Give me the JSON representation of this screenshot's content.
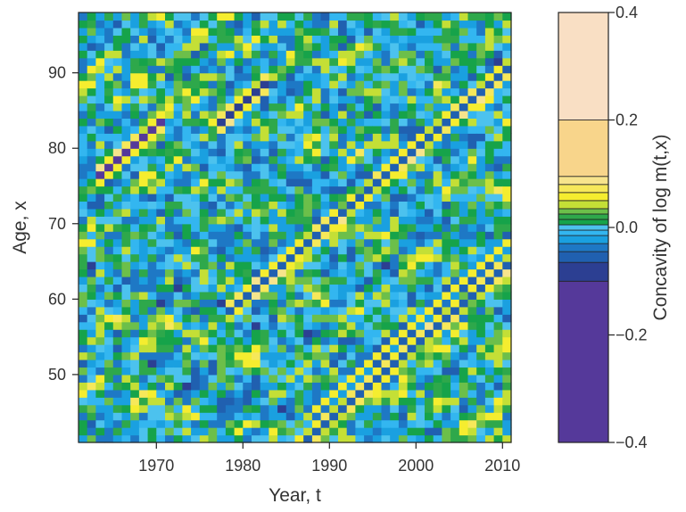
{
  "chart_data": {
    "type": "heatmap",
    "xlabel": "Year, t",
    "ylabel": "Age, x",
    "colorbar_label": "Concavity of log m(t,x)",
    "xlim": [
      1961,
      2011
    ],
    "ylim": [
      41,
      98
    ],
    "x_ticks": [
      "1970",
      "1980",
      "1990",
      "2000",
      "2010"
    ],
    "y_ticks": [
      "50",
      "60",
      "70",
      "80",
      "90"
    ],
    "colorbar_ticks": [
      "−0.4",
      "−0.2",
      "0.0",
      "0.2",
      "0.4"
    ],
    "colorbar_range": [
      -0.4,
      0.4
    ],
    "colorbar_levels": [
      {
        "from": -0.4,
        "to": -0.1,
        "color": "#55399a"
      },
      {
        "from": -0.1,
        "to": -0.065,
        "color": "#2c3f92"
      },
      {
        "from": -0.065,
        "to": -0.045,
        "color": "#2060b0"
      },
      {
        "from": -0.045,
        "to": -0.03,
        "color": "#1e78c5"
      },
      {
        "from": -0.03,
        "to": -0.015,
        "color": "#1aa0e0"
      },
      {
        "from": -0.015,
        "to": -0.005,
        "color": "#33b6f0"
      },
      {
        "from": -0.005,
        "to": 0.005,
        "color": "#4cc2ee"
      },
      {
        "from": 0.005,
        "to": 0.015,
        "color": "#16a34a"
      },
      {
        "from": 0.015,
        "to": 0.025,
        "color": "#2ea84b"
      },
      {
        "from": 0.025,
        "to": 0.035,
        "color": "#6cbf4a"
      },
      {
        "from": 0.035,
        "to": 0.05,
        "color": "#c4df36"
      },
      {
        "from": 0.05,
        "to": 0.065,
        "color": "#f5ed2f"
      },
      {
        "from": 0.065,
        "to": 0.08,
        "color": "#f6e85a"
      },
      {
        "from": 0.08,
        "to": 0.095,
        "color": "#f7e48c"
      },
      {
        "from": 0.095,
        "to": 0.2,
        "color": "#f8d58b"
      },
      {
        "from": 0.2,
        "to": 0.4,
        "color": "#f9dfc4"
      }
    ],
    "cohort_diagonals": [
      {
        "birth_year": 1887,
        "x_range": [
          1963,
          1970
        ],
        "value": -0.2
      },
      {
        "birth_year": 1894,
        "x_range": [
          1977,
          1982
        ],
        "value": -0.1
      },
      {
        "birth_year": 1920,
        "x_range": [
          1978,
          2011
        ],
        "value": -0.06
      },
      {
        "birth_year": 1943,
        "x_range": [
          1988,
          2011
        ],
        "value": 0.05
      },
      {
        "birth_year": 1946,
        "x_range": [
          1985,
          2011
        ],
        "value": -0.05
      }
    ],
    "grid": false
  }
}
